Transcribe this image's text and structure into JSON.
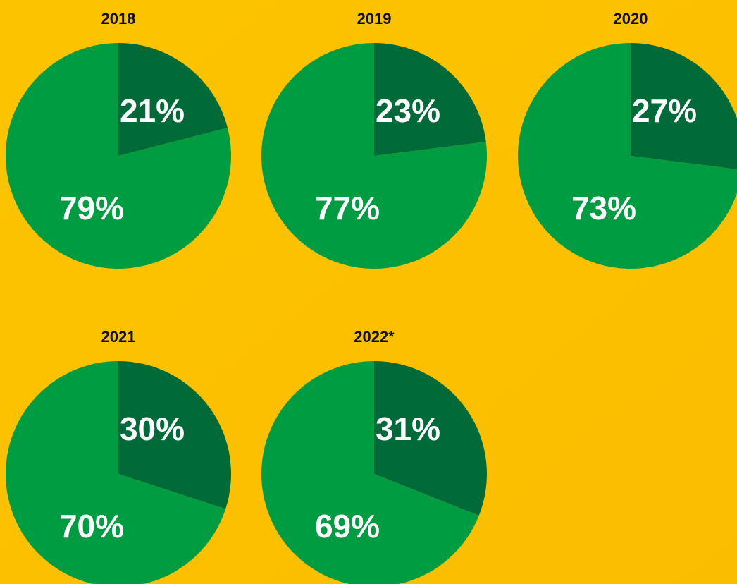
{
  "chart_data": [
    {
      "type": "pie",
      "title": "2018",
      "values": [
        21,
        79
      ],
      "value_labels": [
        "21%",
        "79%"
      ],
      "colors": [
        "#006a38",
        "#009c42"
      ]
    },
    {
      "type": "pie",
      "title": "2019",
      "values": [
        23,
        77
      ],
      "value_labels": [
        "23%",
        "77%"
      ],
      "colors": [
        "#006a38",
        "#009c42"
      ]
    },
    {
      "type": "pie",
      "title": "2020",
      "values": [
        27,
        73
      ],
      "value_labels": [
        "27%",
        "73%"
      ],
      "colors": [
        "#006a38",
        "#009c42"
      ]
    },
    {
      "type": "pie",
      "title": "2021",
      "values": [
        30,
        70
      ],
      "value_labels": [
        "30%",
        "70%"
      ],
      "colors": [
        "#006a38",
        "#009c42"
      ]
    },
    {
      "type": "pie",
      "title": "2022*",
      "values": [
        31,
        69
      ],
      "value_labels": [
        "31%",
        "69%"
      ],
      "colors": [
        "#006a38",
        "#009c42"
      ]
    }
  ]
}
